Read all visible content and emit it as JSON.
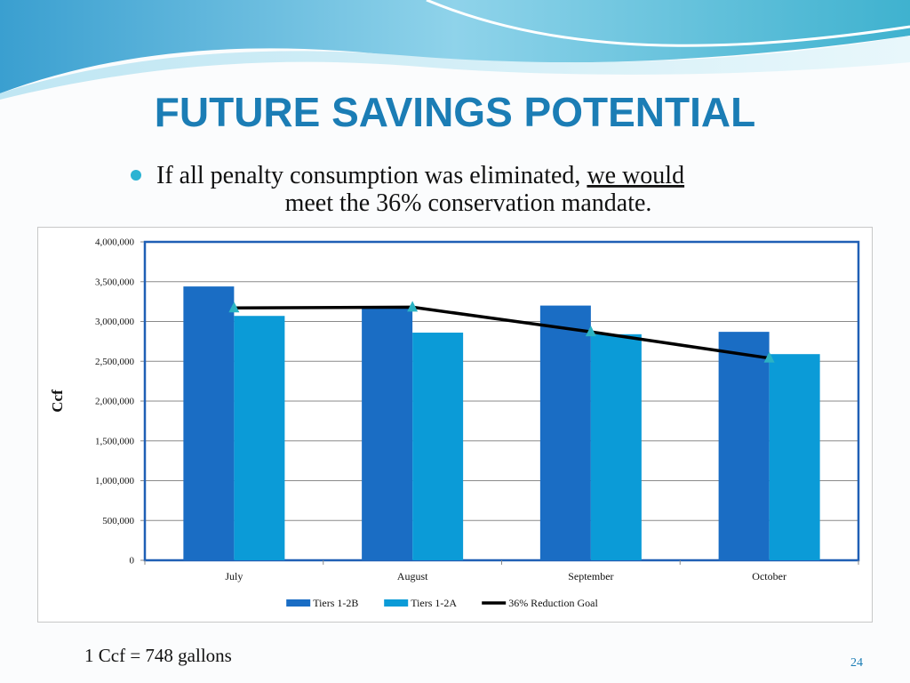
{
  "slide": {
    "title": "FUTURE SAVINGS POTENTIAL",
    "bullet": {
      "text": "If all penalty consumption was eliminated,",
      "underlined": "we would",
      "continuation": "meet the 36% conservation mandate."
    },
    "footnote": "1 Ccf = 748 gallons",
    "page_number": "24"
  },
  "chart_data": {
    "type": "bar",
    "y_label": "Ccf",
    "categories": [
      "July",
      "August",
      "September",
      "October"
    ],
    "series": [
      {
        "name": "Tiers 1-2B",
        "color": "#1a6dc4",
        "values": [
          3440000,
          3170000,
          3200000,
          2870000
        ]
      },
      {
        "name": "Tiers 1-2A",
        "color": "#0b9bd7",
        "values": [
          3070000,
          2860000,
          2840000,
          2590000
        ]
      },
      {
        "name": "36% Reduction Goal",
        "type": "line",
        "color": "#000000",
        "marker_color": "#2bb3c3",
        "values": [
          3170000,
          3180000,
          2870000,
          2540000
        ]
      }
    ],
    "ylim": [
      0,
      4000000
    ],
    "yticks": [
      0,
      {
        "value": 500000,
        "label": "500,000"
      },
      {
        "value": 1000000,
        "label": "1,000,000"
      },
      {
        "value": 1500000,
        "label": "1,500,000"
      },
      {
        "value": 2000000,
        "label": "2,000,000"
      },
      {
        "value": 2500000,
        "label": "2,500,000"
      },
      {
        "value": 3000000,
        "label": "3,000,000"
      },
      {
        "value": 3500000,
        "label": "3,500,000"
      },
      {
        "value": 4000000,
        "label": "4,000,000"
      }
    ],
    "grid": true,
    "legend": "bottom"
  }
}
